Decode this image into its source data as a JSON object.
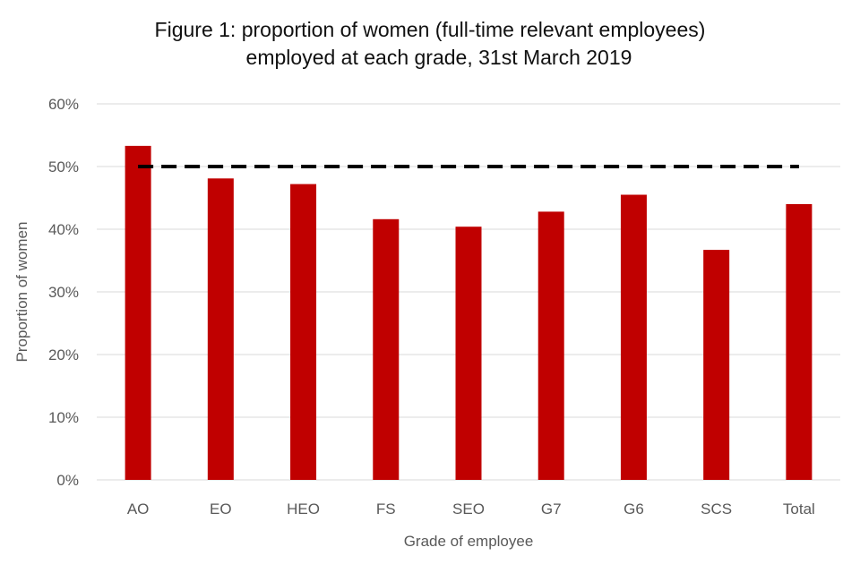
{
  "chart_data": {
    "type": "bar",
    "title_line1": "Figure 1: proportion of women (full-time relevant employees)",
    "title_line2": "employed at each grade, 31st March 2019",
    "xlabel": "Grade of employee",
    "ylabel": "Proportion of women",
    "categories": [
      "AO",
      "EO",
      "HEO",
      "FS",
      "SEO",
      "G7",
      "G6",
      "SCS",
      "Total"
    ],
    "series": [
      {
        "name": "Proportion of women",
        "values": [
          53.3,
          48.1,
          47.2,
          41.6,
          40.4,
          42.8,
          45.5,
          36.7,
          44.0
        ]
      }
    ],
    "reference_line": {
      "value": 50,
      "style": "dashed"
    },
    "ylim": [
      0,
      60
    ],
    "yticks": [
      0,
      10,
      20,
      30,
      40,
      50,
      60
    ],
    "ytick_labels": [
      "0%",
      "10%",
      "20%",
      "30%",
      "40%",
      "50%",
      "60%"
    ],
    "grid": true,
    "legend": "none",
    "colors": {
      "bar": "#c00000",
      "grid": "#d9d9d9",
      "reference": "#000000"
    }
  }
}
